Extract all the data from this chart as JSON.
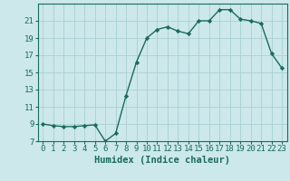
{
  "x": [
    0,
    1,
    2,
    3,
    4,
    5,
    6,
    7,
    8,
    9,
    10,
    11,
    12,
    13,
    14,
    15,
    16,
    17,
    18,
    19,
    20,
    21,
    22,
    23
  ],
  "y": [
    9.0,
    8.8,
    8.7,
    8.7,
    8.8,
    8.9,
    7.0,
    7.9,
    12.3,
    16.2,
    19.0,
    20.0,
    20.3,
    19.8,
    19.5,
    21.0,
    21.0,
    22.3,
    22.3,
    21.2,
    21.0,
    20.7,
    17.2,
    15.5
  ],
  "title": "",
  "xlabel": "Humidex (Indice chaleur)",
  "ylabel": "",
  "xlim": [
    -0.5,
    23.5
  ],
  "ylim": [
    7,
    23
  ],
  "yticks": [
    7,
    9,
    11,
    13,
    15,
    17,
    19,
    21
  ],
  "xticks": [
    0,
    1,
    2,
    3,
    4,
    5,
    6,
    7,
    8,
    9,
    10,
    11,
    12,
    13,
    14,
    15,
    16,
    17,
    18,
    19,
    20,
    21,
    22,
    23
  ],
  "line_color": "#1a6b5a",
  "marker_color": "#1a6b5a",
  "bg_color": "#cce8ea",
  "grid_color": "#aad0d4",
  "tick_fontsize": 6.5,
  "xlabel_fontsize": 7.5
}
